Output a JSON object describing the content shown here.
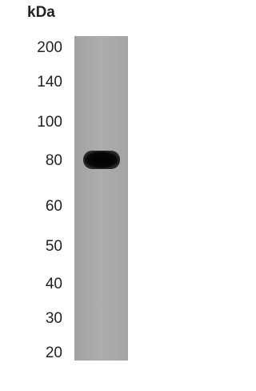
{
  "unit": "kDa",
  "markers": [
    "200",
    "140",
    "100",
    "80",
    "60",
    "50",
    "40",
    "30",
    "20"
  ]
}
